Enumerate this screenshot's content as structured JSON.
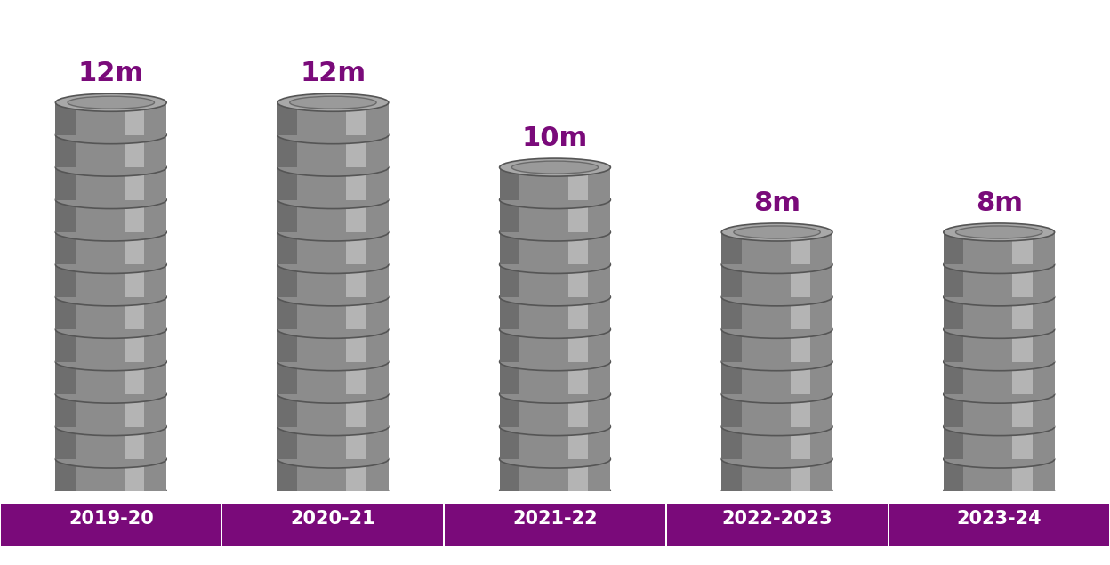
{
  "chart_data": {
    "type": "bar",
    "categories": [
      "2019-20",
      "2020-21",
      "2021-22",
      "2022-2023",
      "2023-24"
    ],
    "values": [
      12,
      12,
      10,
      8,
      8
    ],
    "value_labels": [
      "12m",
      "12m",
      "10m",
      "8m",
      "8m"
    ],
    "data_labels": true,
    "tick_labels": "x",
    "color": "#8c8c8c"
  }
}
